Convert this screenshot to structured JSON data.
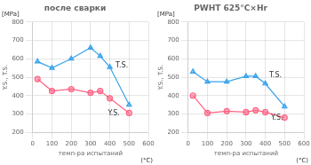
{
  "chart_data": [
    {
      "type": "line",
      "title": "после сварки",
      "xlabel": "темп-ра испытаний",
      "ylabel": "Y.S., T.S.",
      "x": [
        25,
        100,
        200,
        300,
        350,
        400,
        500
      ],
      "series": [
        {
          "marker": "triangle",
          "values": [
            585,
            550,
            600,
            660,
            615,
            555,
            350
          ]
        },
        {
          "marker": "circle",
          "values": [
            490,
            425,
            435,
            415,
            425,
            385,
            305
          ]
        }
      ],
      "xlim": [
        0,
        600
      ],
      "ylim": [
        200,
        800
      ],
      "xticks": [
        0,
        100,
        200,
        300,
        400,
        500,
        600
      ],
      "yticks": [
        200,
        300,
        400,
        500,
        600,
        700,
        800
      ],
      "grid": true,
      "annotations": [
        {
          "text": "T.S.",
          "x": 430,
          "y": 545
        },
        {
          "text": "Y.S.",
          "x": 390,
          "y": 285
        },
        {
          "text": "[MPa]"
        },
        {
          "text": "(°C)"
        }
      ]
    },
    {
      "type": "line",
      "title": "PWHT 625°C×Hr",
      "xlabel": "темп-ра испытаний",
      "ylabel": "Y.S., T.S.",
      "x": [
        25,
        100,
        200,
        300,
        350,
        400,
        500
      ],
      "series": [
        {
          "marker": "triangle",
          "values": [
            530,
            475,
            475,
            505,
            505,
            465,
            340
          ]
        },
        {
          "marker": "circle",
          "values": [
            400,
            305,
            315,
            310,
            320,
            310,
            280
          ]
        }
      ],
      "xlim": [
        0,
        600
      ],
      "ylim": [
        200,
        800
      ],
      "xticks": [
        0,
        100,
        200,
        300,
        400,
        500,
        600
      ],
      "yticks": [
        200,
        300,
        400,
        500,
        600,
        700,
        800
      ],
      "grid": true,
      "annotations": [
        {
          "text": "T.S.",
          "x": 420,
          "y": 490
        },
        {
          "text": "Y.S.",
          "x": 430,
          "y": 258
        },
        {
          "text": "[MPa]"
        },
        {
          "text": "(°C)"
        }
      ]
    }
  ]
}
